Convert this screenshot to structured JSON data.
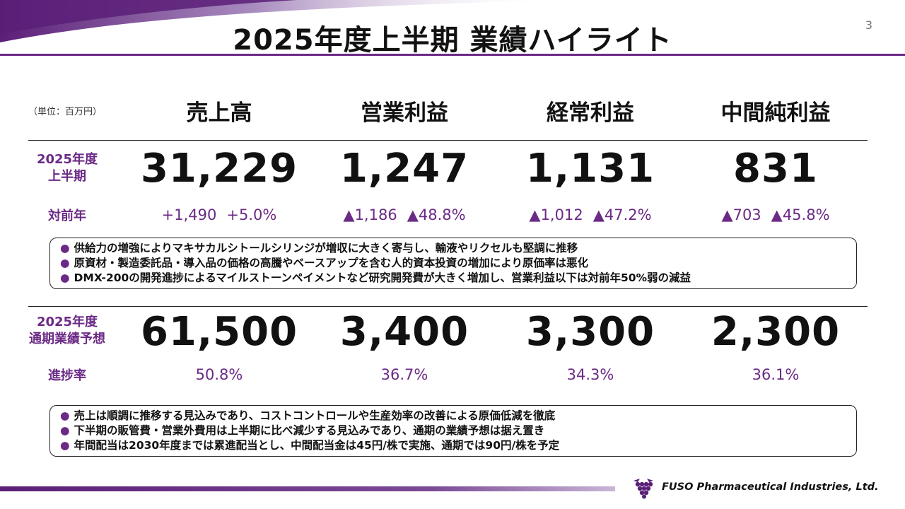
{
  "slide": {
    "title": "2025年度上半期 業績ハイライト",
    "page_number": "3",
    "unit": "（単位：百万円）"
  },
  "columns": [
    "売上高",
    "営業利益",
    "経常利益",
    "中間純利益"
  ],
  "h1": {
    "label_line1": "2025年度",
    "label_line2": "上半期",
    "values": [
      "31,229",
      "1,247",
      "1,131",
      "831"
    ],
    "yoy_label": "対前年",
    "yoy": [
      {
        "amount": "+1,490",
        "pct": "+5.0%"
      },
      {
        "amount": "▲1,186",
        "pct": "▲48.8%"
      },
      {
        "amount": "▲1,012",
        "pct": "▲47.2%"
      },
      {
        "amount": "▲703",
        "pct": "▲45.8%"
      }
    ],
    "notes": [
      "供給力の増強によりマキサカルシトールシリンジが増収に大きく寄与し、輸液やリクセルも堅調に推移",
      "原資材・製造委託品・導入品の価格の高騰やベースアップを含む人的資本投資の増加により原価率は悪化",
      "DMX-200の開発進捗によるマイルストーンペイメントなど研究開発費が大きく増加し、営業利益以下は対前年50%弱の減益"
    ]
  },
  "fy": {
    "label_line1": "2025年度",
    "label_line2": "通期業績予想",
    "values": [
      "61,500",
      "3,400",
      "3,300",
      "2,300"
    ],
    "progress_label": "進捗率",
    "progress": [
      "50.8%",
      "36.7%",
      "34.3%",
      "36.1%"
    ],
    "notes": [
      "売上は順調に推移する見込みであり、コストコントロールや生産効率の改善による原価低減を徹底",
      "下半期の販管費・営業外費用は上半期に比べ減少する見込みであり、通期の業績予想は据え置き",
      "年間配当は2030年度までは累進配当とし、中間配当金は45円/株で実施、通期では90円/株を予定"
    ]
  },
  "footer": {
    "company": "FUSO Pharmaceutical Industries, Ltd.",
    "logo_icon": "grape-logo-icon"
  },
  "colors": {
    "accent": "#6b2a86",
    "text": "#111111"
  }
}
